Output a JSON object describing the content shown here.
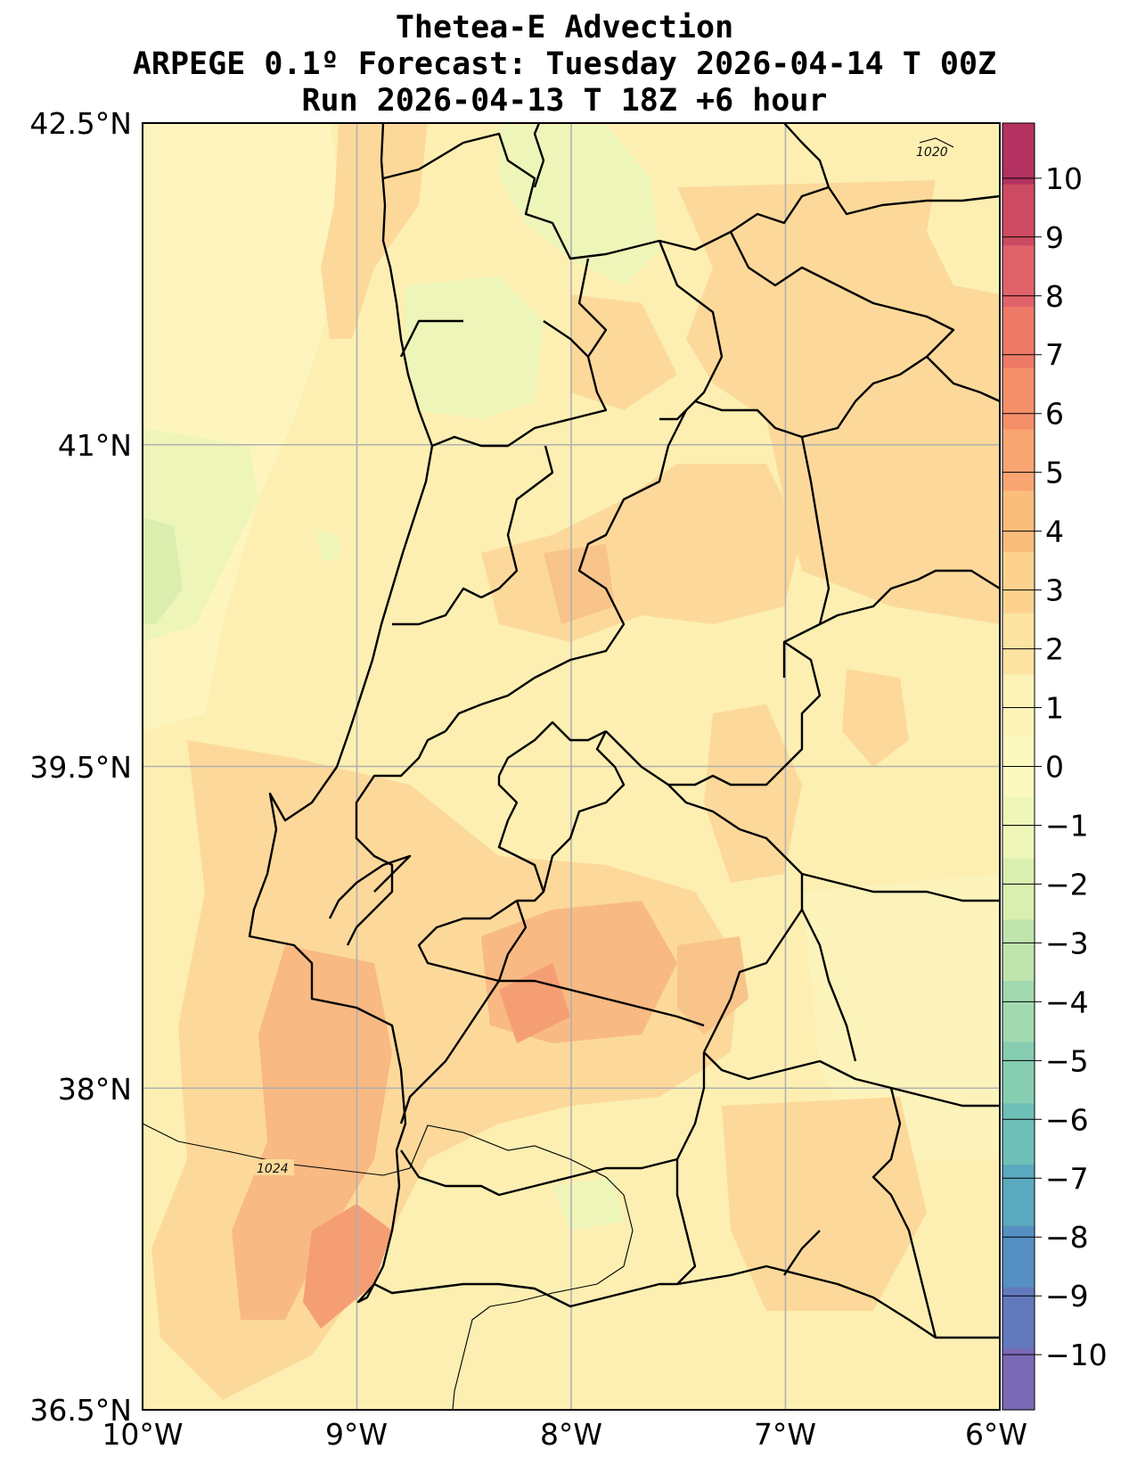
{
  "title": {
    "line1": "Thetea-E Advection",
    "line2": "ARPEGE 0.1º Forecast: Tuesday 2026-04-14 T 00Z",
    "line3": "Run 2026-04-13 T 18Z +6 hour"
  },
  "axes": {
    "lat_labels": [
      "42.5°N",
      "41°N",
      "39.5°N",
      "38°N",
      "36.5°N"
    ],
    "lon_labels": [
      "10°W",
      "9°W",
      "8°W",
      "7°W",
      "6°W"
    ],
    "lat_range": [
      36.5,
      42.5
    ],
    "lon_range": [
      -10,
      -6
    ],
    "grid": true
  },
  "colorbar": {
    "ticks": [
      "10",
      "9",
      "8",
      "7",
      "6",
      "5",
      "4",
      "3",
      "2",
      "1",
      "0",
      "−1",
      "−2",
      "−3",
      "−4",
      "−5",
      "−6",
      "−7",
      "−8",
      "−9",
      "−10"
    ],
    "colors_top_to_bottom": [
      "#b3325f",
      "#cd4b62",
      "#e0636a",
      "#ee7a68",
      "#f58f6a",
      "#f9a572",
      "#fbbd7c",
      "#fcd28e",
      "#fde3a2",
      "#fdf3b8",
      "#fbf9c0",
      "#eef7b8",
      "#d9efb0",
      "#bfe4ae",
      "#a3d9b0",
      "#86cdb2",
      "#6ebfb7",
      "#5aa9be",
      "#568fc3",
      "#6379bd",
      "#7a69b5"
    ]
  },
  "isobars": {
    "label_1020": "1020",
    "label_1024": "1024"
  },
  "colors": {
    "field_base": "#fcefb1",
    "field_warm": "#fcd99a",
    "field_hot": "#f8b983",
    "field_hotter": "#f59e74",
    "field_cool": "#eef5b9",
    "field_cooler": "#dbeeae"
  }
}
